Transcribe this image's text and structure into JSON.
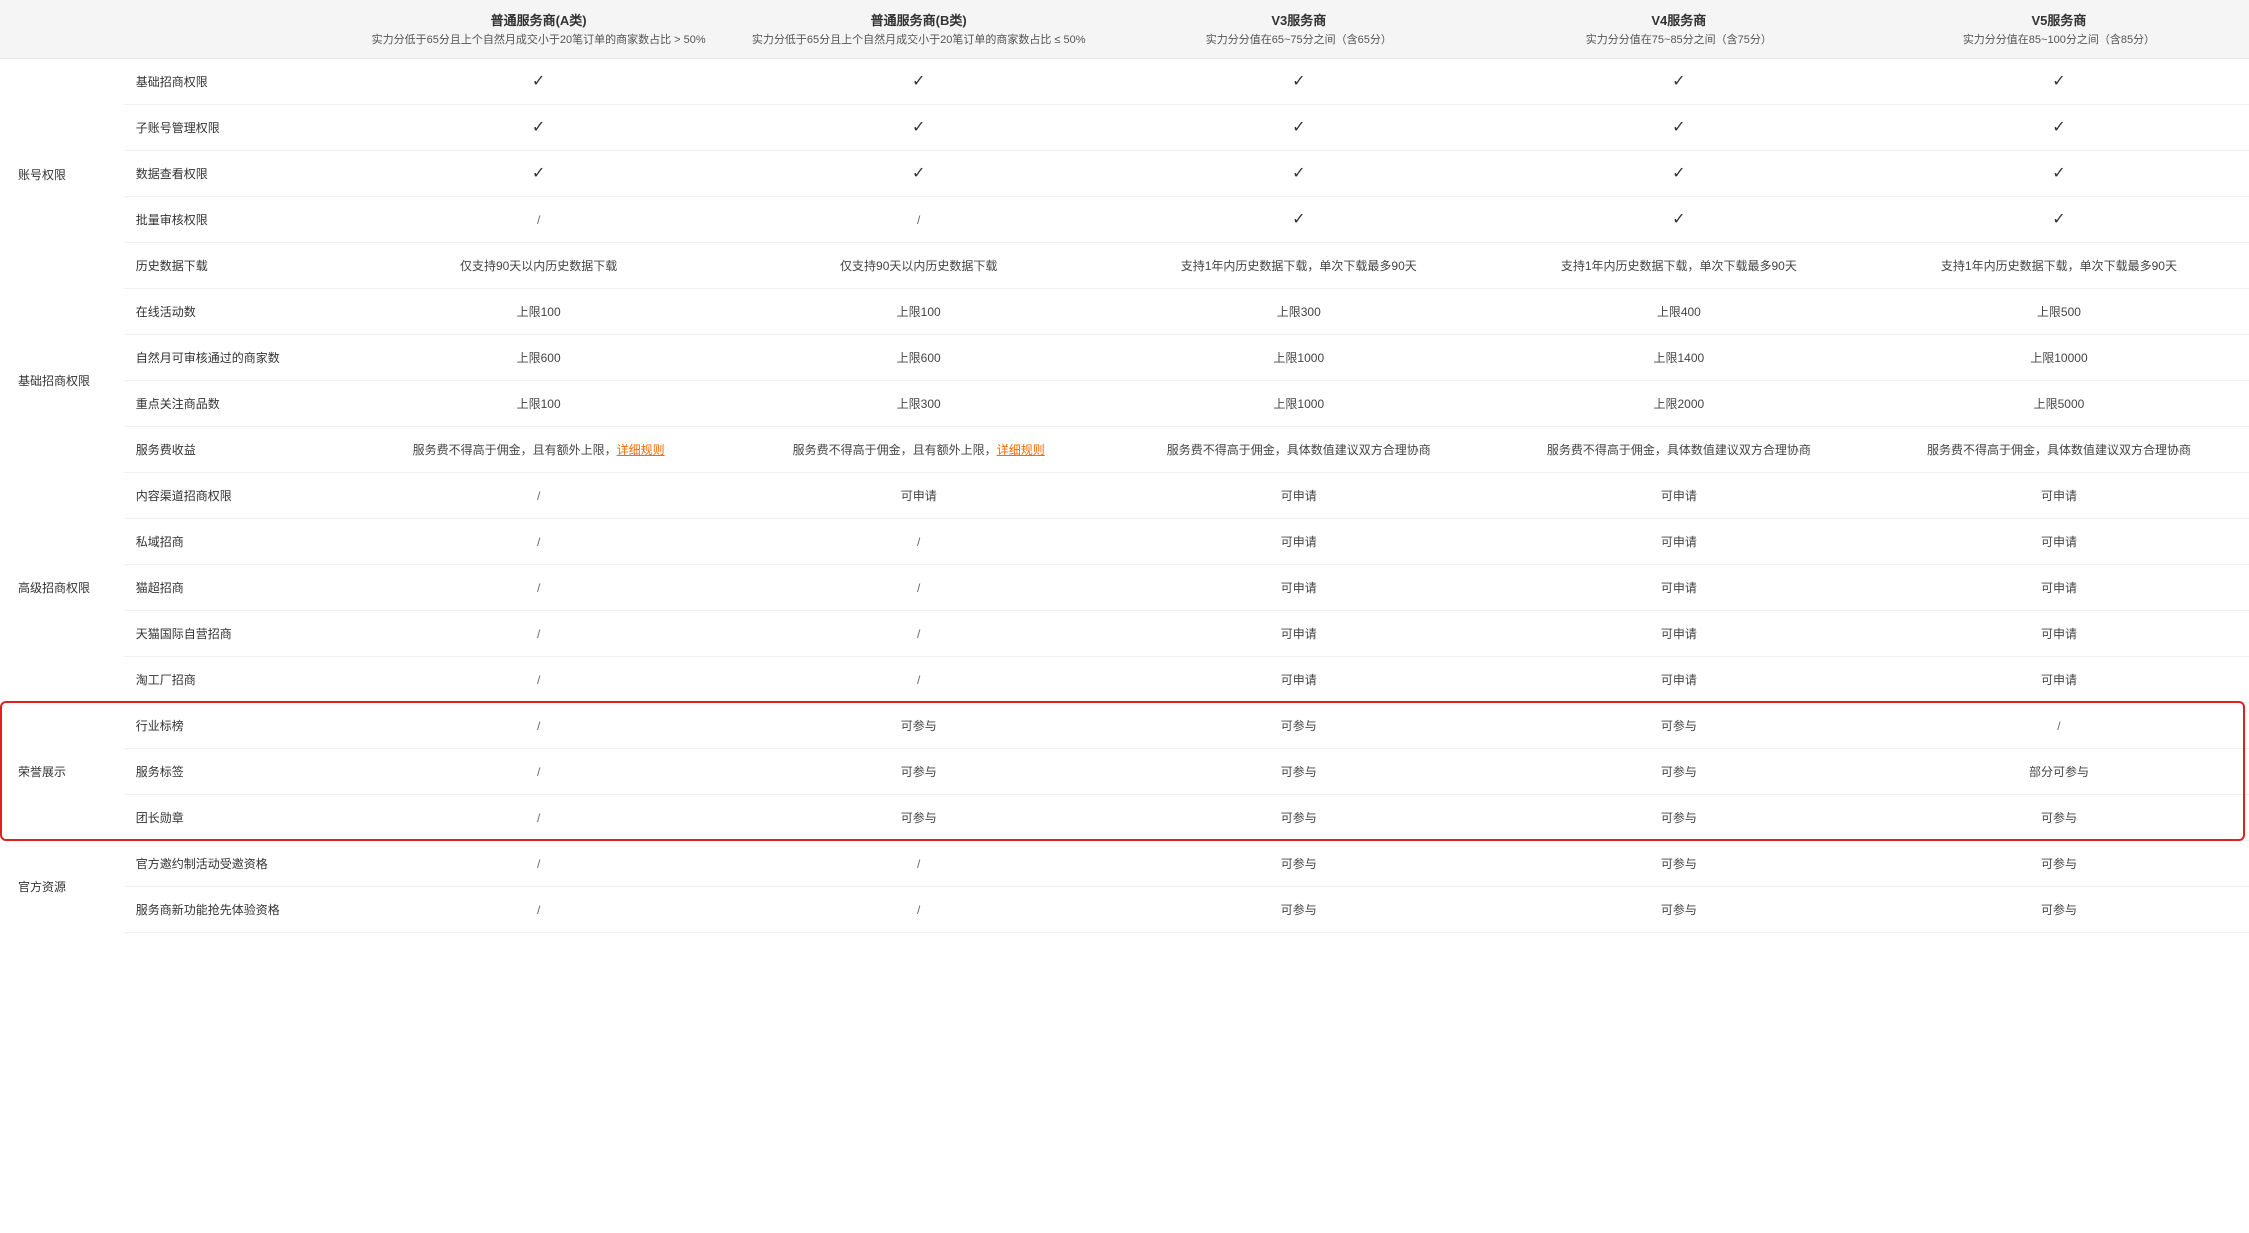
{
  "columns": [
    {
      "title": "普通服务商(A类)",
      "sub": "实力分低于65分且上个自然月成交小于20笔订单的商家数占比 > 50%"
    },
    {
      "title": "普通服务商(B类)",
      "sub": "实力分低于65分且上个自然月成交小于20笔订单的商家数占比 ≤ 50%"
    },
    {
      "title": "V3服务商",
      "sub": "实力分分值在65~75分之间（含65分）"
    },
    {
      "title": "V4服务商",
      "sub": "实力分分值在75~85分之间（含75分）"
    },
    {
      "title": "V5服务商",
      "sub": "实力分分值在85~100分之间（含85分）"
    }
  ],
  "groups": [
    {
      "name": "账号权限",
      "rows": [
        {
          "label": "基础招商权限",
          "cells": [
            "check",
            "check",
            "check",
            "check",
            "check"
          ]
        },
        {
          "label": "子账号管理权限",
          "cells": [
            "check",
            "check",
            "check",
            "check",
            "check"
          ]
        },
        {
          "label": "数据查看权限",
          "cells": [
            "check",
            "check",
            "check",
            "check",
            "check"
          ]
        },
        {
          "label": "批量审核权限",
          "cells": [
            "/",
            "/",
            "check",
            "check",
            "check"
          ]
        },
        {
          "label": "历史数据下载",
          "cells": [
            "仅支持90天以内历史数据下载",
            "仅支持90天以内历史数据下载",
            "支持1年内历史数据下载，单次下载最多90天",
            "支持1年内历史数据下载，单次下载最多90天",
            "支持1年内历史数据下载，单次下载最多90天"
          ]
        }
      ]
    },
    {
      "name": "基础招商权限",
      "rows": [
        {
          "label": "在线活动数",
          "cells": [
            "上限100",
            "上限100",
            "上限300",
            "上限400",
            "上限500"
          ]
        },
        {
          "label": "自然月可审核通过的商家数",
          "cells": [
            "上限600",
            "上限600",
            "上限1000",
            "上限1400",
            "上限10000"
          ]
        },
        {
          "label": "重点关注商品数",
          "cells": [
            "上限100",
            "上限300",
            "上限1000",
            "上限2000",
            "上限5000"
          ]
        },
        {
          "label": "服务费收益",
          "cells": [
            {
              "text": "服务费不得高于佣金，且有额外上限，",
              "link": "详细规则"
            },
            {
              "text": "服务费不得高于佣金，且有额外上限，",
              "link": "详细规则"
            },
            "服务费不得高于佣金，具体数值建议双方合理协商",
            "服务费不得高于佣金，具体数值建议双方合理协商",
            "服务费不得高于佣金，具体数值建议双方合理协商"
          ]
        }
      ]
    },
    {
      "name": "高级招商权限",
      "rows": [
        {
          "label": "内容渠道招商权限",
          "cells": [
            "/",
            "可申请",
            "可申请",
            "可申请",
            "可申请"
          ]
        },
        {
          "label": "私域招商",
          "cells": [
            "/",
            "/",
            "可申请",
            "可申请",
            "可申请"
          ]
        },
        {
          "label": "猫超招商",
          "cells": [
            "/",
            "/",
            "可申请",
            "可申请",
            "可申请"
          ]
        },
        {
          "label": "天猫国际自营招商",
          "cells": [
            "/",
            "/",
            "可申请",
            "可申请",
            "可申请"
          ]
        },
        {
          "label": "淘工厂招商",
          "cells": [
            "/",
            "/",
            "可申请",
            "可申请",
            "可申请"
          ]
        }
      ]
    },
    {
      "name": "荣誉展示",
      "highlight": true,
      "rows": [
        {
          "label": "行业标榜",
          "cells": [
            "/",
            "可参与",
            "可参与",
            "可参与",
            "/"
          ]
        },
        {
          "label": "服务标签",
          "cells": [
            "/",
            "可参与",
            "可参与",
            "可参与",
            "部分可参与"
          ]
        },
        {
          "label": "团长勋章",
          "cells": [
            "/",
            "可参与",
            "可参与",
            "可参与",
            "可参与"
          ]
        }
      ]
    },
    {
      "name": "官方资源",
      "rows": [
        {
          "label": "官方邀约制活动受邀资格",
          "cells": [
            "/",
            "/",
            "可参与",
            "可参与",
            "可参与"
          ]
        },
        {
          "label": "服务商新功能抢先体验资格",
          "cells": [
            "/",
            "/",
            "可参与",
            "可参与",
            "可参与"
          ]
        }
      ]
    }
  ],
  "style": {
    "accent_link_color": "#ff6a00",
    "highlight_border_color": "#e02020",
    "header_bg": "#f5f5f5",
    "row_border_color": "#f0f0f0",
    "check_glyph": "✓",
    "fonts": {
      "body": 12,
      "col_title": 13,
      "col_sub": 11
    }
  }
}
